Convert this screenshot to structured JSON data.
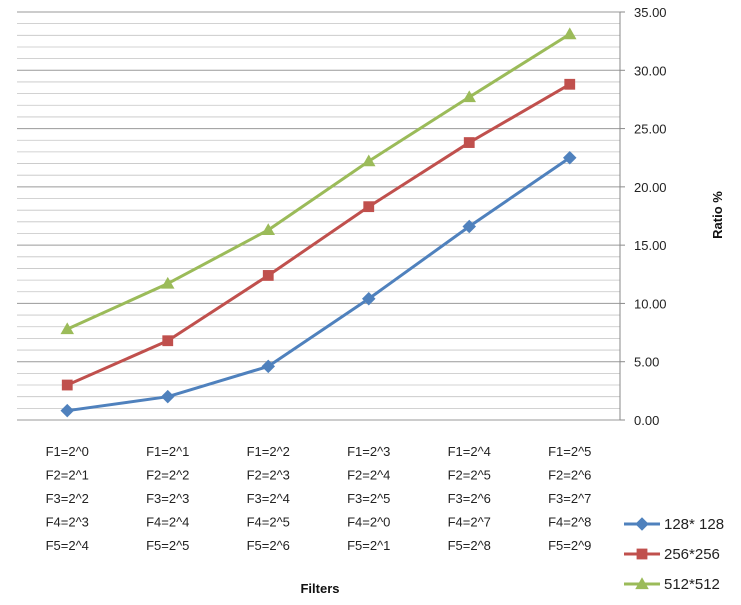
{
  "chart_data": {
    "type": "line",
    "title": "",
    "xlabel": "Filters",
    "ylabel": "Ratio %",
    "ylim": [
      0,
      35
    ],
    "y_ticks": [
      "0.00",
      "5.00",
      "10.00",
      "15.00",
      "20.00",
      "25.00",
      "30.00",
      "35.00"
    ],
    "grid": true,
    "legend_position": "bottom-right",
    "categories": [
      [
        "F1=2^0",
        "F2=2^1",
        "F3=2^2",
        "F4=2^3",
        "F5=2^4"
      ],
      [
        "F1=2^1",
        "F2=2^2",
        "F3=2^3",
        "F4=2^4",
        "F5=2^5"
      ],
      [
        "F1=2^2",
        "F2=2^3",
        "F3=2^4",
        "F4=2^5",
        "F5=2^6"
      ],
      [
        "F1=2^3",
        "F2=2^4",
        "F3=2^5",
        "F4=2^0",
        "F5=2^1"
      ],
      [
        "F1=2^4",
        "F2=2^5",
        "F3=2^6",
        "F4=2^7",
        "F5=2^8"
      ],
      [
        "F1=2^5",
        "F2=2^6",
        "F3=2^7",
        "F4=2^8",
        "F5=2^9"
      ]
    ],
    "series": [
      {
        "name": "128* 128",
        "color": "#4F81BD",
        "marker": "diamond",
        "values": [
          0.8,
          2.0,
          4.6,
          10.4,
          16.6,
          22.5
        ]
      },
      {
        "name": "256*256",
        "color": "#C0504D",
        "marker": "square",
        "values": [
          3.0,
          6.8,
          12.4,
          18.3,
          23.8,
          28.8
        ]
      },
      {
        "name": "512*512",
        "color": "#9BBB59",
        "marker": "triangle",
        "values": [
          7.8,
          11.7,
          16.3,
          22.2,
          27.7,
          33.1
        ]
      }
    ]
  }
}
